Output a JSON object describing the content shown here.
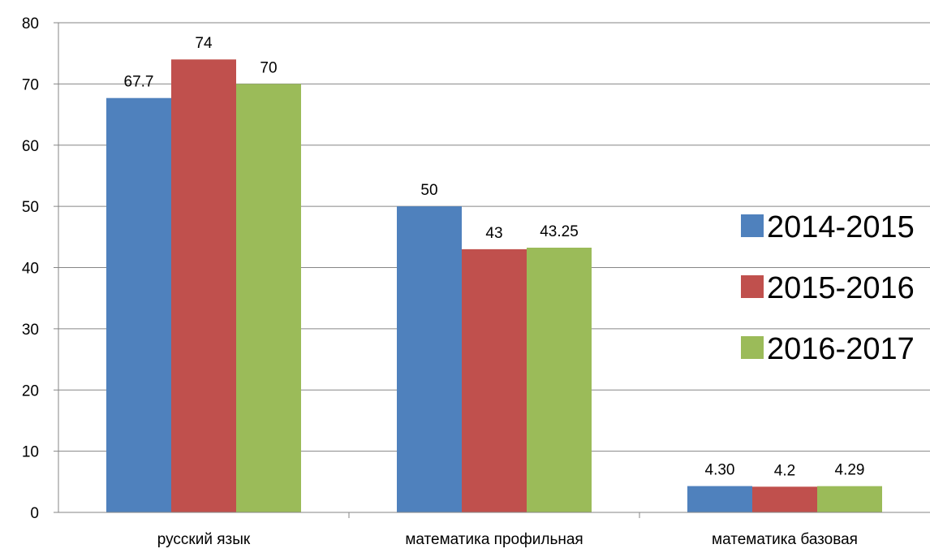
{
  "chart_data": {
    "type": "bar",
    "title": "",
    "xlabel": "",
    "ylabel": "",
    "ylim": [
      0,
      80
    ],
    "yticks": [
      0,
      10,
      20,
      30,
      40,
      50,
      60,
      70,
      80
    ],
    "grid": true,
    "legend_position": "right",
    "categories": [
      "русский язык",
      "математика профильная",
      "математика  базовая"
    ],
    "series": [
      {
        "name": "2014-2015",
        "color": "#4F81BD",
        "values": [
          67.7,
          50,
          4.3
        ],
        "labels": [
          "67.7",
          "50",
          "4.30"
        ]
      },
      {
        "name": "2015-2016",
        "color": "#C0504D",
        "values": [
          74,
          43,
          4.2
        ],
        "labels": [
          "74",
          "43",
          "4.2"
        ]
      },
      {
        "name": "2016-2017",
        "color": "#9BBB59",
        "values": [
          70,
          43.25,
          4.29
        ],
        "labels": [
          "70",
          "43.25",
          "4.29"
        ]
      }
    ]
  }
}
